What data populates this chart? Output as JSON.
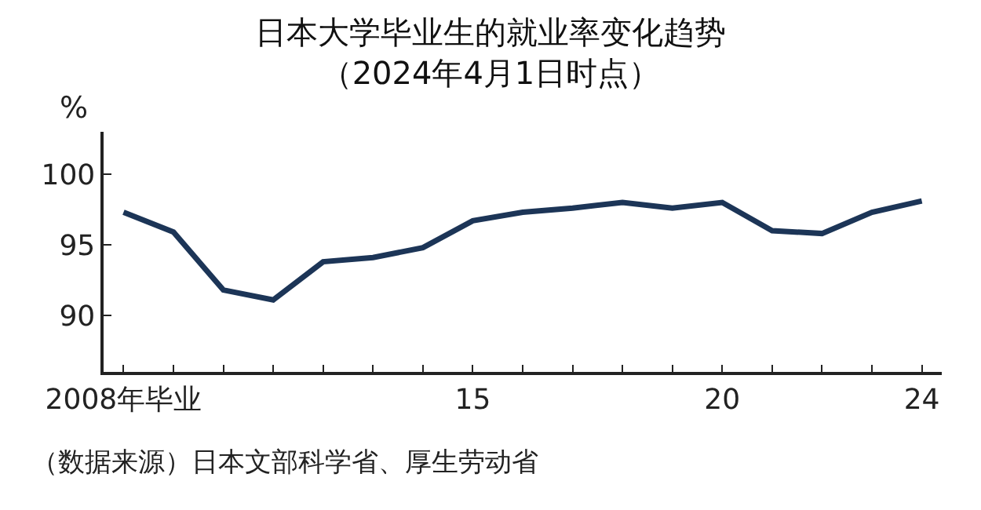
{
  "chart_data": {
    "type": "line",
    "title": "日本大学毕业生的就业率变化趋势",
    "subtitle": "（2024年4月1日时点）",
    "ylabel": "%",
    "annotations": [
      "（数据来源）日本文部科学省、厚生劳动省"
    ],
    "x": [
      2008,
      2009,
      2010,
      2011,
      2012,
      2013,
      2014,
      2015,
      2016,
      2017,
      2018,
      2019,
      2020,
      2021,
      2022,
      2023,
      2024
    ],
    "series": [
      {
        "color": "#1c3557",
        "values": [
          97.3,
          95.9,
          91.8,
          91.1,
          93.8,
          94.1,
          94.8,
          96.7,
          97.3,
          97.6,
          98.0,
          97.6,
          98.0,
          96.0,
          95.8,
          97.3,
          98.1
        ]
      }
    ],
    "xlim": [
      2007.6,
      2024.4
    ],
    "ylim": [
      86,
      103
    ],
    "xticks": [
      {
        "value": 2008,
        "label": "2008年毕业"
      },
      {
        "value": 2009,
        "label": null
      },
      {
        "value": 2010,
        "label": null
      },
      {
        "value": 2011,
        "label": null
      },
      {
        "value": 2012,
        "label": null
      },
      {
        "value": 2013,
        "label": null
      },
      {
        "value": 2014,
        "label": null
      },
      {
        "value": 2015,
        "label": "15"
      },
      {
        "value": 2016,
        "label": null
      },
      {
        "value": 2017,
        "label": null
      },
      {
        "value": 2018,
        "label": null
      },
      {
        "value": 2019,
        "label": null
      },
      {
        "value": 2020,
        "label": "20"
      },
      {
        "value": 2021,
        "label": null
      },
      {
        "value": 2022,
        "label": null
      },
      {
        "value": 2023,
        "label": null
      },
      {
        "value": 2024,
        "label": "24"
      }
    ],
    "yticks": [
      90,
      95,
      100
    ],
    "grid": false,
    "marker": "none",
    "line_style": "solid"
  }
}
